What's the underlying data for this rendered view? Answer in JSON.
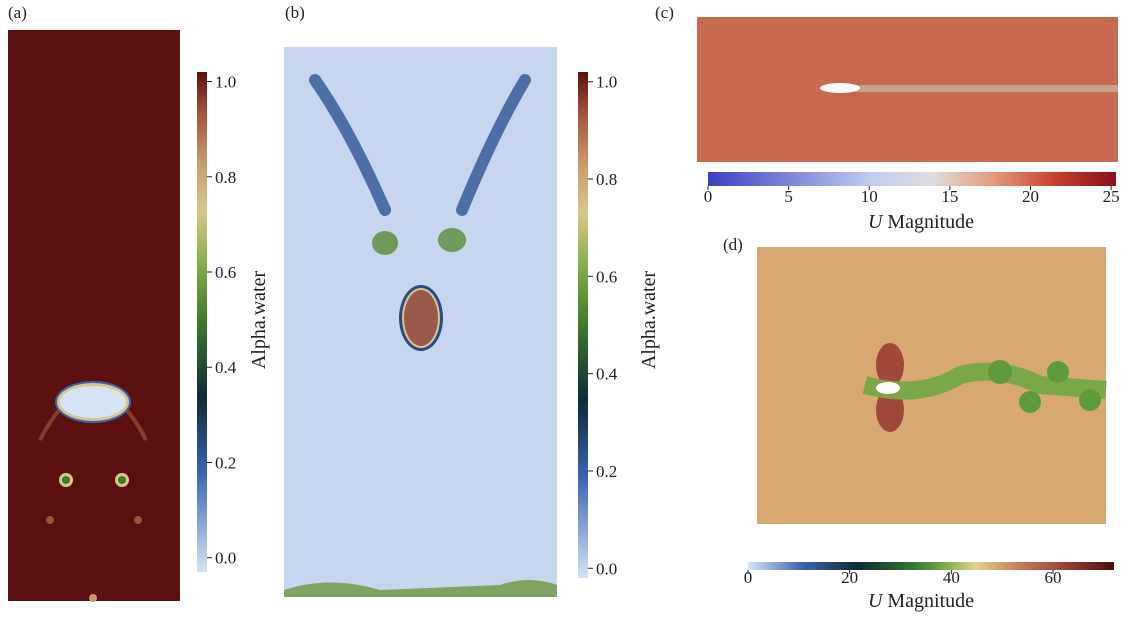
{
  "panels": [
    {
      "label": "(a)",
      "colorbar": {
        "title": "Alpha.water",
        "lim": [
          -0.03,
          1.02
        ],
        "ticks": [
          {
            "value": 0,
            "label": "0.0"
          },
          {
            "value": 0.2,
            "label": "0.2"
          },
          {
            "value": 0.4,
            "label": "0.4"
          },
          {
            "value": 0.6,
            "label": "0.6"
          },
          {
            "value": 0.8,
            "label": "0.8"
          },
          {
            "value": 1,
            "label": "1.0"
          }
        ]
      }
    },
    {
      "label": "(b)",
      "colorbar": {
        "title": "Alpha.water",
        "lim": [
          -0.02,
          1.02
        ],
        "ticks": [
          {
            "value": 0,
            "label": "0.0"
          },
          {
            "value": 0.2,
            "label": "0.2"
          },
          {
            "value": 0.4,
            "label": "0.4"
          },
          {
            "value": 0.6,
            "label": "0.6"
          },
          {
            "value": 0.8,
            "label": "0.8"
          },
          {
            "value": 1,
            "label": "1.0"
          }
        ]
      }
    },
    {
      "label": "(c)",
      "colorbar": {
        "title_symbol": "U",
        "title": "Magnitude",
        "lim": [
          0,
          25.3
        ],
        "ticks": [
          0,
          5,
          10,
          15,
          20,
          25
        ]
      }
    },
    {
      "label": "(d)",
      "colorbar": {
        "title_symbol": "U",
        "title": "Magnitude",
        "lim": [
          0,
          72
        ],
        "ticks": [
          0,
          20,
          40,
          60
        ]
      }
    }
  ]
}
